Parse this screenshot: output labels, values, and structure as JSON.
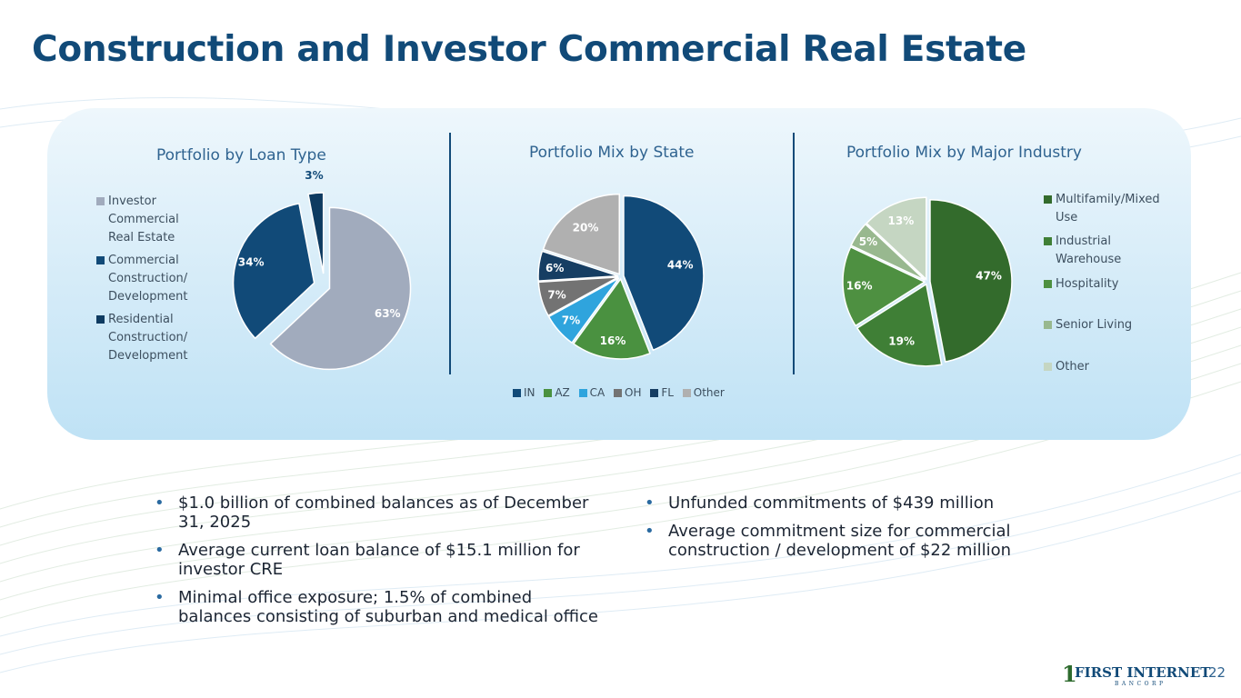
{
  "title": "Construction and Investor Commercial Real Estate",
  "colors": {
    "navy": "#114a78",
    "investor_cre": "#a1abbd",
    "commercial_construction": "#114a78",
    "residential_construction": "#0e3b61",
    "in": "#114a78",
    "az": "#4a9140",
    "ca": "#2fa4dd",
    "oh": "#737373",
    "fl": "#163e63",
    "state_other": "#b0b0b0",
    "multifamily": "#336b2c",
    "industrial": "#3f7f36",
    "hospitality": "#4e9041",
    "senior_living": "#98b88f",
    "industry_other": "#c5d6c2"
  },
  "chart_data": [
    {
      "type": "pie",
      "title": "Portfolio by Loan Type",
      "legend": [
        "Investor Commercial Real Estate",
        "Commercial Construction/ Development",
        "Residential Construction/ Development"
      ],
      "slices": [
        {
          "label": "Investor Commercial Real Estate",
          "value": 63,
          "text": "63%"
        },
        {
          "label": "Commercial Construction/ Development",
          "value": 34,
          "text": "34%"
        },
        {
          "label": "Residential Construction/ Development",
          "value": 3,
          "text": "3%"
        }
      ]
    },
    {
      "type": "pie",
      "title": "Portfolio Mix by State",
      "legend": [
        "IN",
        "AZ",
        "CA",
        "OH",
        "FL",
        "Other"
      ],
      "slices": [
        {
          "label": "IN",
          "value": 44,
          "text": "44%"
        },
        {
          "label": "AZ",
          "value": 16,
          "text": "16%"
        },
        {
          "label": "CA",
          "value": 7,
          "text": "7%"
        },
        {
          "label": "OH",
          "value": 7,
          "text": "7%"
        },
        {
          "label": "FL",
          "value": 6,
          "text": "6%"
        },
        {
          "label": "Other",
          "value": 20,
          "text": "20%"
        }
      ]
    },
    {
      "type": "pie",
      "title": "Portfolio Mix by Major Industry",
      "legend": [
        "Multifamily/Mixed Use",
        "Industrial Warehouse",
        "Hospitality",
        "Senior Living",
        "Other"
      ],
      "slices": [
        {
          "label": "Multifamily/Mixed Use",
          "value": 47,
          "text": "47%"
        },
        {
          "label": "Industrial Warehouse",
          "value": 19,
          "text": "19%"
        },
        {
          "label": "Hospitality",
          "value": 16,
          "text": "16%"
        },
        {
          "label": "Senior Living",
          "value": 5,
          "text": "5%"
        },
        {
          "label": "Other",
          "value": 13,
          "text": "13%"
        }
      ]
    }
  ],
  "legends": {
    "loan_type": [
      "Investor\nCommercial\nReal Estate",
      "Commercial\nConstruction/\nDevelopment",
      "Residential\nConstruction/\nDevelopment"
    ],
    "state": [
      "IN",
      "AZ",
      "CA",
      "OH",
      "FL",
      "Other"
    ],
    "industry": [
      "Multifamily/Mixed\nUse",
      "Industrial\nWarehouse",
      "Hospitality",
      "Senior Living",
      "Other"
    ]
  },
  "bullets_left": [
    "$1.0 billion of combined balances as of December 31, 2025",
    "Average current loan balance of $15.1 million for investor CRE",
    "Minimal office exposure; 1.5% of combined balances consisting of suburban and medical office"
  ],
  "bullets_right": [
    "Unfunded commitments of $439 million",
    "Average commitment size for commercial construction / development of $22 million"
  ],
  "bullet_char": "•",
  "logo": {
    "mark": "1",
    "name": "FIRST INTERNET",
    "sub": "BANCORP"
  },
  "page_number": "22"
}
